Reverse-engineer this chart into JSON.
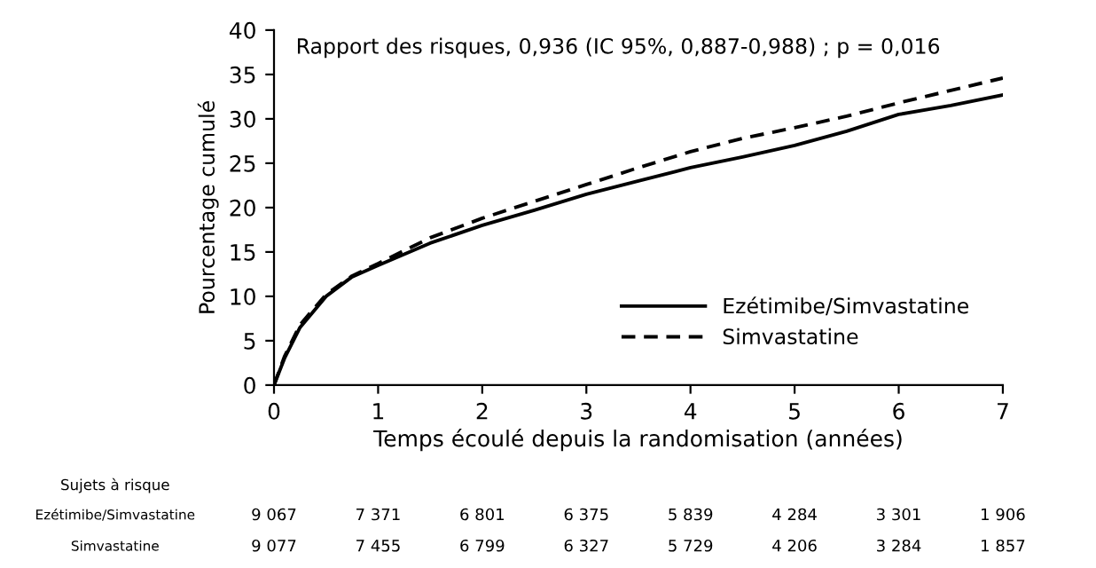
{
  "chart_data": {
    "type": "line",
    "xlabel": "Temps écoulé depuis la randomisation (années)",
    "ylabel": "Pourcentage cumulé",
    "x": [
      0,
      0.1,
      0.25,
      0.5,
      0.75,
      1,
      1.5,
      2,
      2.5,
      3,
      3.5,
      4,
      4.5,
      5,
      5.5,
      6,
      6.5,
      7
    ],
    "series": [
      {
        "name": "Ezétimibe/Simvastatine",
        "color": "#000000",
        "line_style": "solid",
        "values": [
          0,
          3,
          6.5,
          10,
          12.2,
          13.5,
          16,
          18,
          19.7,
          21.5,
          23,
          24.5,
          25.7,
          27,
          28.6,
          30.5,
          31.5,
          32.7
        ]
      },
      {
        "name": "Simvastatine",
        "color": "#000000",
        "line_style": "dashed",
        "values": [
          0,
          3.2,
          6.8,
          10.2,
          12.3,
          13.7,
          16.6,
          18.8,
          20.7,
          22.6,
          24.5,
          26.3,
          27.8,
          29,
          30.3,
          31.8,
          33.2,
          34.6
        ]
      }
    ],
    "xlim": [
      0,
      7
    ],
    "xticks": [
      0,
      1,
      2,
      3,
      4,
      5,
      6,
      7
    ],
    "ylim": [
      0,
      40
    ],
    "yticks": [
      0,
      5,
      10,
      15,
      20,
      25,
      30,
      35,
      40
    ],
    "grid": false,
    "legend": "bottom right",
    "marker": "none",
    "annotations": [
      "Rapport des risques, 0,936 (IC 95%, 0,887-0,988) ; p = 0,016",
      "Sujets à risque",
      "Ezétimibe/Simvastatine",
      "9 067",
      "7 371",
      "6 801",
      "6 375",
      "5 839",
      "4 284",
      "3 301",
      "1 906",
      "Simvastatine",
      "9 077",
      "7 455",
      "6 799",
      "6 327",
      "5 729",
      "4 206",
      "3 284",
      "1 857"
    ]
  }
}
